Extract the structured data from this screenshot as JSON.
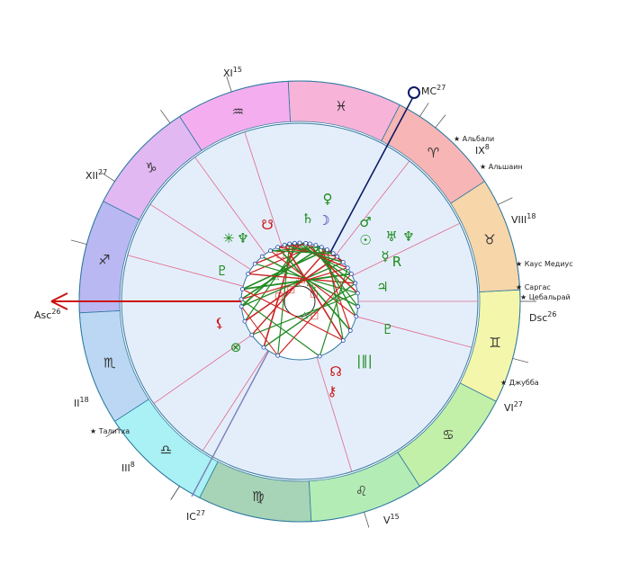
{
  "chart": {
    "angles": {
      "asc": {
        "label": "Asc",
        "degree": "26",
        "color": "#cc1111"
      },
      "mc": {
        "label": "MC",
        "degree": "27",
        "color": "#0a1a66"
      },
      "dsc": {
        "label": "Dsc",
        "degree": "26"
      },
      "ic": {
        "label": "IC",
        "degree": "27"
      }
    },
    "houses": [
      {
        "numeral": "II",
        "degree": "18"
      },
      {
        "numeral": "III",
        "degree": "8"
      },
      {
        "numeral": "V",
        "degree": "15"
      },
      {
        "numeral": "VI",
        "degree": "27"
      },
      {
        "numeral": "VIII",
        "degree": "18"
      },
      {
        "numeral": "IX",
        "degree": "8"
      },
      {
        "numeral": "XI",
        "degree": "15"
      },
      {
        "numeral": "XII",
        "degree": "27"
      }
    ],
    "signs": [
      {
        "name": "pisces",
        "glyph": "♓",
        "color": "#f7b3d8"
      },
      {
        "name": "aquarius",
        "glyph": "♒",
        "color": "#f4aef0"
      },
      {
        "name": "capricorn",
        "glyph": "♑",
        "color": "#e2b8f2"
      },
      {
        "name": "sagittarius",
        "glyph": "♐",
        "color": "#b9b8f2"
      },
      {
        "name": "scorpio",
        "glyph": "♏",
        "color": "#bcd7f4"
      },
      {
        "name": "libra",
        "glyph": "♎",
        "color": "#a9f1f4"
      },
      {
        "name": "virgo",
        "glyph": "♍",
        "color": "#a7d4b7"
      },
      {
        "name": "leo",
        "glyph": "♌",
        "color": "#b4ecb6"
      },
      {
        "name": "cancer",
        "glyph": "♋",
        "color": "#c3f0a9"
      },
      {
        "name": "gemini",
        "glyph": "♊",
        "color": "#f3f6ab"
      },
      {
        "name": "taurus",
        "glyph": "♉",
        "color": "#f7d6aa"
      },
      {
        "name": "aries",
        "glyph": "♈",
        "color": "#f7b5b5"
      }
    ],
    "stars": [
      {
        "name": "Альбали"
      },
      {
        "name": "Альшаин"
      },
      {
        "name": "Каус Медиус"
      },
      {
        "name": "Саргас"
      },
      {
        "name": "Цебальрай"
      },
      {
        "name": "Джубба"
      },
      {
        "name": "Талитха"
      }
    ],
    "planets": [
      {
        "name": "venus",
        "glyph": "♀",
        "color": "#1a8a1a"
      },
      {
        "name": "saturn",
        "glyph": "♄",
        "color": "#1a8a1a"
      },
      {
        "name": "moon",
        "glyph": "☽",
        "color": "#1a1aa8"
      },
      {
        "name": "mars",
        "glyph": "♂",
        "color": "#1a8a1a"
      },
      {
        "name": "uranus",
        "glyph": "♅",
        "color": "#1a8a1a"
      },
      {
        "name": "neptune",
        "glyph": "♆",
        "color": "#1a8a1a"
      },
      {
        "name": "sun",
        "glyph": "☉",
        "color": "#1a8a1a"
      },
      {
        "name": "mercury",
        "glyph": "☿",
        "color": "#1a8a1a"
      },
      {
        "name": "mercury-retro-mark",
        "glyph": "R",
        "color": "#1a8a1a"
      },
      {
        "name": "jupiter",
        "glyph": "♃",
        "color": "#1a8a1a"
      },
      {
        "name": "pluto",
        "glyph": "♇",
        "color": "#1a8a1a"
      },
      {
        "name": "asteroid-parallel",
        "glyph": "|∥|",
        "color": "#1a8a1a"
      },
      {
        "name": "north-node",
        "glyph": "☊",
        "color": "#cc1111"
      },
      {
        "name": "chiron",
        "glyph": "⚷",
        "color": "#cc1111"
      },
      {
        "name": "part-of-fortune",
        "glyph": "⊗",
        "color": "#1a8a1a"
      },
      {
        "name": "lilith",
        "glyph": "⚸",
        "color": "#cc1111"
      },
      {
        "name": "proserpina",
        "glyph": "♇",
        "color": "#1a8a1a"
      },
      {
        "name": "star-point",
        "glyph": "✳",
        "color": "#1a8a1a"
      },
      {
        "name": "transpluto",
        "glyph": "♆",
        "color": "#1a8a1a"
      },
      {
        "name": "south-node-mark",
        "glyph": "☋",
        "color": "#cc1111"
      }
    ],
    "colors": {
      "inner_field": "#e4eefb",
      "house_line": "#e0688a",
      "outline": "#3a7aa0",
      "aspect_red": "#cc2222",
      "aspect_green": "#228a22"
    }
  }
}
